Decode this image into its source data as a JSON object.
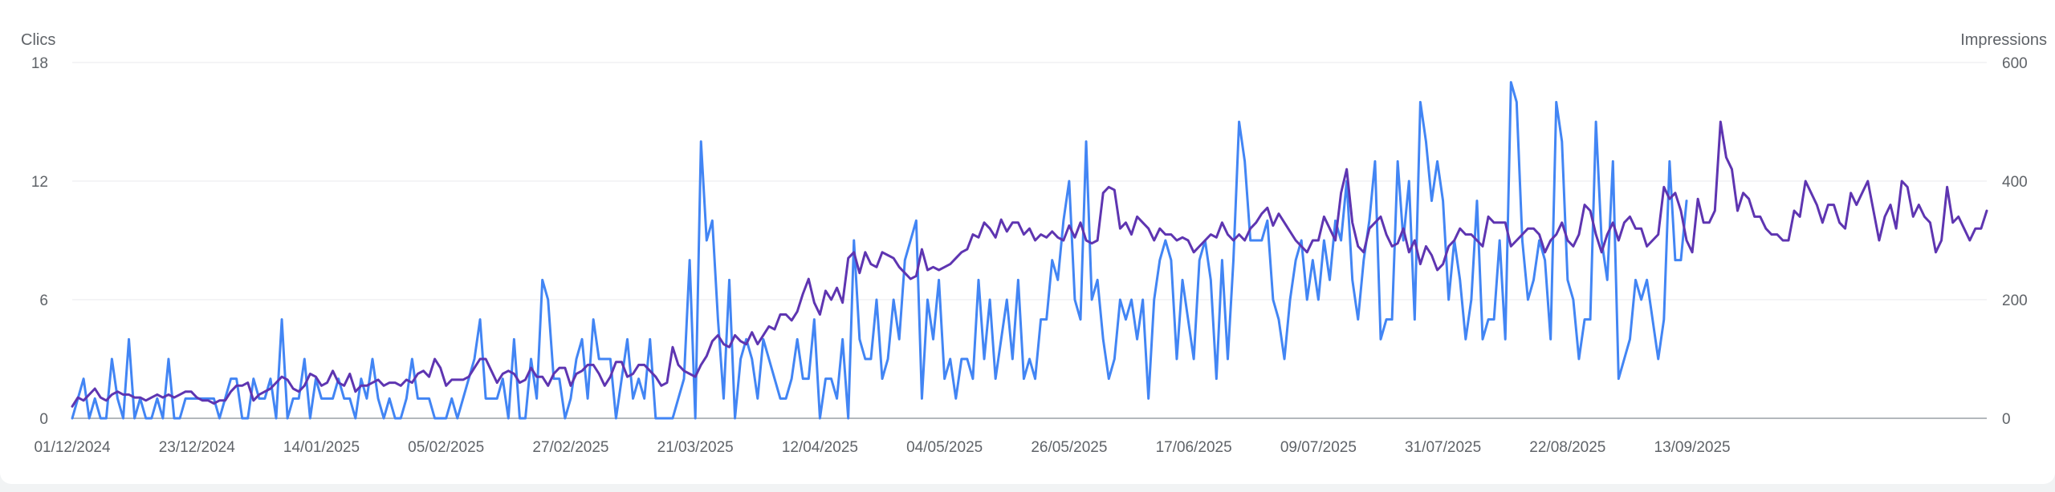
{
  "chart_data": {
    "type": "line",
    "left_axis_label": "Clics",
    "right_axis_label": "Impressions",
    "left_ylim": [
      0,
      18
    ],
    "right_ylim": [
      0,
      600
    ],
    "left_ticks": [
      "0",
      "6",
      "12",
      "18"
    ],
    "right_ticks": [
      "0",
      "200",
      "400",
      "600"
    ],
    "x_tick_labels": [
      "01/12/2024",
      "23/12/2024",
      "14/01/2025",
      "05/02/2025",
      "27/02/2025",
      "21/03/2025",
      "12/04/2025",
      "04/05/2025",
      "26/05/2025",
      "17/06/2025",
      "09/07/2025",
      "31/07/2025",
      "22/08/2025",
      "13/09/2025"
    ],
    "grid": true,
    "colors": {
      "clics": "#4285f4",
      "impressions": "#5e35b1",
      "grid": "#e8eaed",
      "baseline": "#9aa0a6"
    },
    "series": [
      {
        "axis": "left",
        "values": [
          0,
          1,
          2,
          0,
          1,
          0,
          0,
          3,
          1,
          0,
          4,
          0,
          1,
          0,
          0,
          1,
          0,
          3,
          0,
          0,
          1,
          1,
          1,
          1,
          1,
          1,
          0,
          1,
          2,
          2,
          0,
          0,
          2,
          1,
          1,
          2,
          0,
          5,
          0,
          1,
          1,
          3,
          0,
          2,
          1,
          1,
          1,
          2,
          1,
          1,
          0,
          2,
          1,
          3,
          1,
          0,
          1,
          0,
          0,
          1,
          3,
          1,
          1,
          1,
          0,
          0,
          0,
          1,
          0,
          1,
          2,
          3,
          5,
          1,
          1,
          1,
          2,
          0,
          4,
          0,
          0,
          3,
          1,
          7,
          6,
          2,
          2,
          0,
          1,
          3,
          4,
          1,
          5,
          3,
          3,
          3,
          0,
          2,
          4,
          1,
          2,
          1,
          4,
          0,
          0,
          0,
          0,
          1,
          2,
          8,
          0,
          14,
          9,
          10,
          5,
          1,
          7,
          0,
          3,
          4,
          3,
          1,
          4,
          3,
          2,
          1,
          1,
          2,
          4,
          2,
          2,
          5,
          0,
          2,
          2,
          1,
          4,
          0,
          9,
          4,
          3,
          3,
          6,
          2,
          3,
          6,
          4,
          8,
          9,
          10,
          1,
          6,
          4,
          7,
          2,
          3,
          1,
          3,
          3,
          2,
          7,
          3,
          6,
          2,
          4,
          6,
          3,
          7,
          2,
          3,
          2,
          5,
          5,
          8,
          7,
          10,
          12,
          6,
          5,
          14,
          6,
          7,
          4,
          2,
          3,
          6,
          5,
          6,
          4,
          6,
          1,
          6,
          8,
          9,
          8,
          3,
          7,
          5,
          3,
          8,
          9,
          7,
          2,
          8,
          3,
          8,
          15,
          13,
          9,
          9,
          9,
          10,
          6,
          5,
          3,
          6,
          8,
          9,
          6,
          8,
          6,
          9,
          7,
          10,
          9,
          12,
          7,
          5,
          8,
          10,
          13,
          4,
          5,
          5,
          13,
          9,
          12,
          5,
          16,
          14,
          11,
          13,
          11,
          6,
          9,
          7,
          4,
          6,
          11,
          4,
          5,
          5,
          9,
          4,
          17,
          16,
          9,
          6,
          7,
          9,
          8,
          4,
          16,
          14,
          7,
          6,
          3,
          5,
          5,
          15,
          9,
          7,
          13,
          2,
          3,
          4,
          7,
          6,
          7,
          5,
          3,
          5,
          13,
          8,
          8,
          11
        ]
      },
      {
        "axis": "right",
        "values": [
          20,
          35,
          30,
          40,
          50,
          35,
          30,
          40,
          45,
          40,
          40,
          35,
          35,
          30,
          35,
          40,
          35,
          40,
          35,
          40,
          45,
          45,
          35,
          30,
          30,
          25,
          30,
          30,
          45,
          55,
          55,
          60,
          30,
          40,
          45,
          50,
          60,
          70,
          65,
          50,
          45,
          55,
          75,
          70,
          55,
          60,
          80,
          60,
          55,
          75,
          45,
          55,
          55,
          60,
          65,
          55,
          60,
          60,
          55,
          65,
          60,
          75,
          80,
          70,
          100,
          85,
          55,
          65,
          65,
          65,
          70,
          85,
          100,
          100,
          80,
          60,
          75,
          80,
          75,
          60,
          65,
          85,
          70,
          70,
          55,
          75,
          85,
          85,
          55,
          75,
          80,
          90,
          90,
          75,
          55,
          70,
          95,
          95,
          70,
          75,
          90,
          90,
          80,
          70,
          55,
          60,
          120,
          90,
          80,
          75,
          70,
          90,
          105,
          130,
          140,
          125,
          120,
          140,
          130,
          125,
          145,
          125,
          140,
          155,
          150,
          175,
          175,
          165,
          180,
          210,
          235,
          195,
          175,
          215,
          200,
          220,
          195,
          270,
          280,
          245,
          280,
          260,
          255,
          280,
          275,
          270,
          255,
          245,
          235,
          240,
          285,
          250,
          255,
          250,
          255,
          260,
          270,
          280,
          285,
          310,
          305,
          330,
          320,
          305,
          335,
          315,
          330,
          330,
          310,
          320,
          300,
          310,
          305,
          315,
          305,
          300,
          325,
          305,
          330,
          300,
          295,
          300,
          380,
          390,
          385,
          320,
          330,
          310,
          340,
          330,
          320,
          300,
          320,
          310,
          310,
          300,
          305,
          300,
          280,
          290,
          300,
          310,
          305,
          330,
          310,
          300,
          310,
          300,
          320,
          330,
          345,
          355,
          325,
          345,
          330,
          315,
          300,
          290,
          280,
          300,
          300,
          340,
          320,
          300,
          380,
          420,
          330,
          290,
          280,
          320,
          330,
          340,
          310,
          290,
          295,
          320,
          280,
          300,
          260,
          290,
          275,
          250,
          260,
          290,
          300,
          320,
          310,
          310,
          300,
          290,
          340,
          330,
          330,
          330,
          290,
          300,
          310,
          320,
          320,
          310,
          280,
          300,
          310,
          330,
          300,
          290,
          310,
          360,
          350,
          310,
          280,
          310,
          330,
          300,
          330,
          340,
          320,
          320,
          290,
          300,
          310,
          390,
          370,
          380,
          350,
          300,
          280,
          370,
          330,
          330,
          350,
          500,
          440,
          420,
          350,
          380,
          370,
          340,
          340,
          320,
          310,
          310,
          300,
          300,
          350,
          340,
          400,
          380,
          360,
          330,
          360,
          360,
          330,
          320,
          380,
          360,
          380,
          400,
          350,
          300,
          340,
          360,
          320,
          400,
          390,
          340,
          360,
          340,
          330,
          280,
          300,
          390,
          330,
          340,
          320,
          300,
          320,
          320,
          350
        ]
      }
    ]
  }
}
